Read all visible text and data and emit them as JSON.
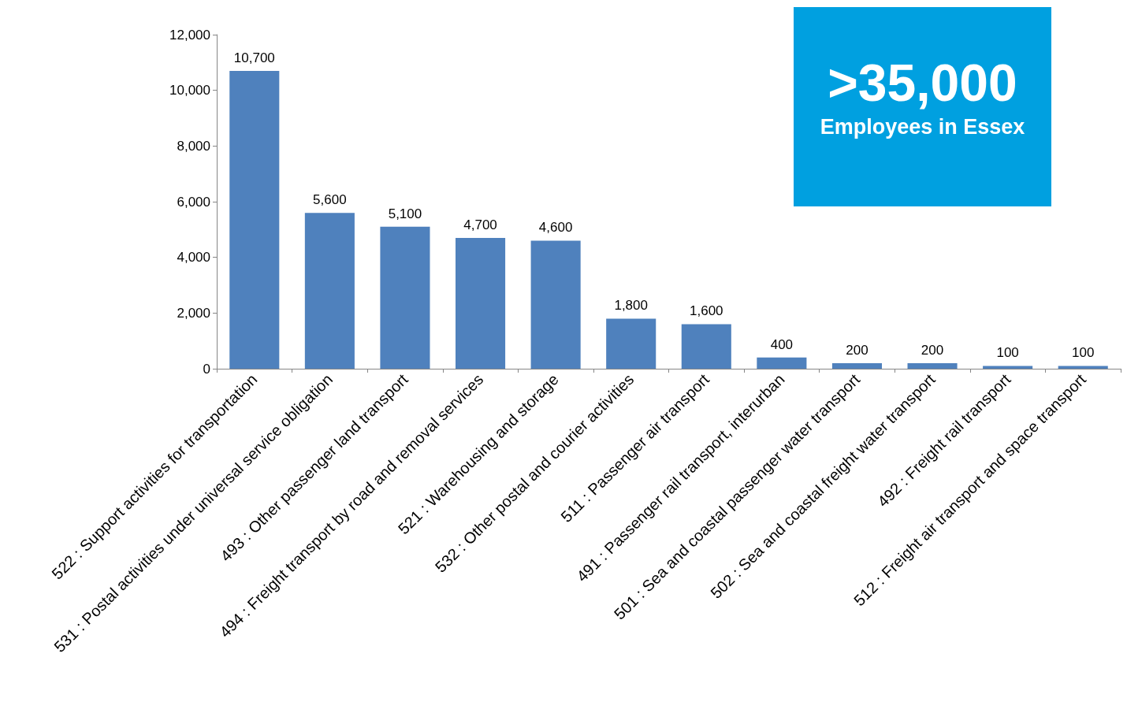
{
  "chart_data": {
    "type": "bar",
    "categories": [
      "522 : Support activities for transportation",
      "531 : Postal activities under universal service obligation",
      "493 : Other passenger land transport",
      "494 : Freight transport by road and removal services",
      "521 : Warehousing and storage",
      "532 : Other postal and courier activities",
      "511 : Passenger air transport",
      "491 : Passenger rail transport, interurban",
      "501 : Sea and coastal passenger water transport",
      "502 : Sea and coastal freight water transport",
      "492 : Freight rail transport",
      "512 : Freight air transport and space transport"
    ],
    "values": [
      10700,
      5600,
      5100,
      4700,
      4600,
      1800,
      1600,
      400,
      200,
      200,
      100,
      100
    ],
    "color": "#4f81bd",
    "ylim": [
      0,
      12000
    ],
    "yticks": [
      {
        "value": 0,
        "label": "0"
      },
      {
        "value": 2000,
        "label": "2,000"
      },
      {
        "value": 4000,
        "label": "4,000"
      },
      {
        "value": 6000,
        "label": "6,000"
      },
      {
        "value": 8000,
        "label": "8,000"
      },
      {
        "value": 10000,
        "label": "10,000"
      },
      {
        "value": 12000,
        "label": "12,000"
      }
    ],
    "value_labels": [
      "10,700",
      "5,600",
      "5,100",
      "4,700",
      "4,600",
      "1,800",
      "1,600",
      "400",
      "200",
      "200",
      "100",
      "100"
    ],
    "annotations": [
      ">35,000",
      "Employees in Essex"
    ],
    "grid": false
  }
}
